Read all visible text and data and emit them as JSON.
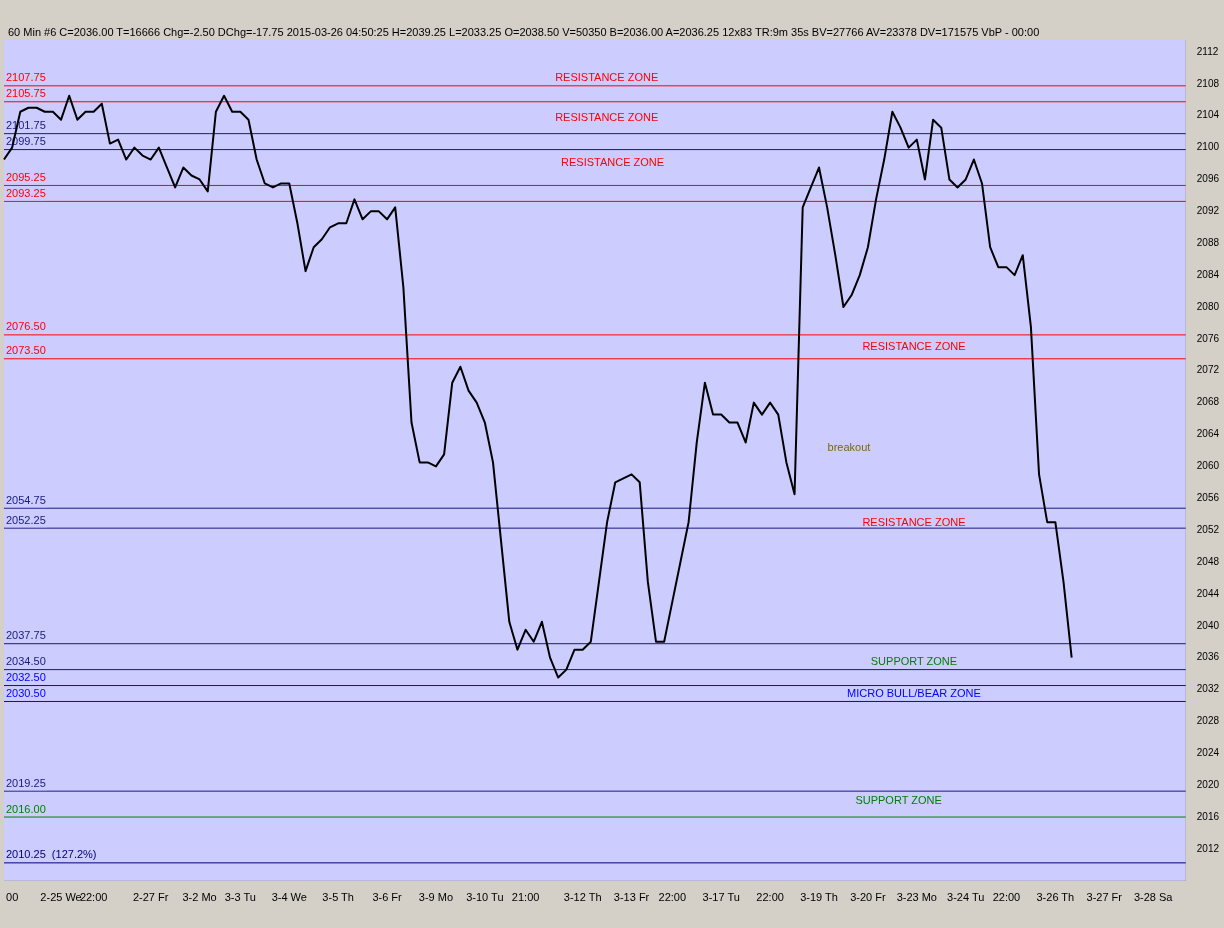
{
  "chart_data": {
    "type": "line",
    "title": "60 Min  #6  C=2036.00  T=16666  Chg=-2.50  DChg=-17.75  2015-03-26 04:50:25  H=2039.25  L=2033.25  O=2038.50  V=50350  B=2036.00  A=2036.25  12x83  TR:9m 35s  BV=27766  AV=23378  DV=171575  VbP - 00:00",
    "categories": [
      null,
      "00",
      null,
      null,
      null,
      null,
      null,
      "2-25 We",
      null,
      null,
      null,
      "22:00",
      null,
      null,
      null,
      null,
      null,
      null,
      "2-27 Fr",
      null,
      null,
      null,
      null,
      null,
      "3-2 Mo",
      null,
      null,
      null,
      null,
      "3-3 Tu",
      null,
      null,
      null,
      null,
      null,
      "3-4 We",
      null,
      null,
      null,
      null,
      null,
      "3-5 Th",
      null,
      null,
      null,
      null,
      null,
      "3-6 Fr",
      null,
      null,
      null,
      null,
      null,
      "3-9 Mo",
      null,
      null,
      null,
      null,
      null,
      "3-10 Tu",
      null,
      null,
      null,
      null,
      "21:00",
      null,
      null,
      null,
      null,
      null,
      null,
      "3-12 Th",
      null,
      null,
      null,
      null,
      null,
      "3-13 Fr",
      null,
      null,
      null,
      null,
      "22:00",
      null,
      null,
      null,
      null,
      null,
      "3-17 Tu",
      null,
      null,
      null,
      null,
      null,
      "22:00",
      null,
      null,
      null,
      null,
      null,
      "3-19 Th",
      null,
      null,
      null,
      null,
      null,
      "3-20 Fr",
      null,
      null,
      null,
      null,
      null,
      "3-23 Mo",
      null,
      null,
      null,
      null,
      null,
      "3-24 Tu",
      null,
      null,
      null,
      null,
      "22:00",
      null,
      null,
      null,
      null,
      null,
      "3-26 Th",
      null,
      null,
      null,
      null,
      null,
      "3-27 Fr",
      null,
      null,
      null,
      null,
      null,
      "3-28 Sa",
      null,
      null,
      null,
      null
    ],
    "series": [
      {
        "color": "#000000",
        "values": [
          2098.5,
          2100,
          2104.5,
          2105,
          2105,
          2104.5,
          2104.5,
          2103.5,
          2106.5,
          2103.5,
          2104.5,
          2104.5,
          2105.5,
          2100.5,
          2101,
          2098.5,
          2100,
          2099,
          2098.5,
          2100,
          2097.5,
          2095,
          2097.5,
          2096.5,
          2096,
          2094.5,
          2104.5,
          2106.5,
          2104.5,
          2104.5,
          2103.5,
          2098.5,
          2095.5,
          2095,
          2095.5,
          2095.5,
          2090.5,
          2084.5,
          2087.5,
          2088.5,
          2090,
          2090.5,
          2090.5,
          2093.5,
          2091,
          2092,
          2092,
          2091,
          2092.5,
          2082.5,
          2065.5,
          2060.5,
          2060.5,
          2060,
          2061.5,
          2070.5,
          2072.5,
          2069.5,
          2068,
          2065.5,
          2060.5,
          2050.5,
          2040.5,
          2037,
          2039.5,
          2038,
          2040.5,
          2036,
          2033.5,
          2034.5,
          2037,
          2037,
          2038,
          2045.5,
          2053,
          2058,
          2058.5,
          2059,
          2058,
          2045.5,
          2038,
          2038,
          2043,
          2048,
          2053,
          2063,
          2070.5,
          2066.5,
          2066.5,
          2065.5,
          2065.5,
          2063,
          2068,
          2066.5,
          2068,
          2066.5,
          2060.5,
          2056.5,
          2092.5,
          2095,
          2097.5,
          2092.5,
          2086.5,
          2080,
          2081.5,
          2084,
          2087.5,
          2093.5,
          2098.5,
          2104.5,
          2102.5,
          2100,
          2101,
          2096,
          2103.5,
          2102.5,
          2096,
          2095,
          2096,
          2098.5,
          2095.5,
          2087.5,
          2085,
          2085,
          2084,
          2086.5,
          2077.5,
          2059,
          2053,
          2053,
          2045.5,
          2036,
          null,
          null,
          null,
          null,
          null,
          null,
          null,
          null,
          null,
          null,
          null,
          null,
          null,
          null
        ]
      }
    ],
    "ylim": [
      2008,
      2113.5
    ],
    "yticks": [
      2012,
      2016,
      2020,
      2024,
      2028,
      2032,
      2036,
      2040,
      2044,
      2048,
      2052,
      2056,
      2060,
      2064,
      2068,
      2072,
      2076,
      2080,
      2084,
      2088,
      2092,
      2096,
      2100,
      2104,
      2108,
      2112
    ],
    "grid": false,
    "marker": "none",
    "line_style": "solid",
    "ref_lines": [
      {
        "axis": "y",
        "value": 2107.75,
        "label": "2107.75",
        "color": "#ff0000"
      },
      {
        "axis": "y",
        "value": 2105.75,
        "label": "2105.75",
        "color": "#ff0000"
      },
      {
        "axis": "y",
        "value": 2101.75,
        "label": "2101.75",
        "color": "#1a1a80"
      },
      {
        "axis": "y",
        "value": 2099.75,
        "label": "2099.75",
        "color": "#1a1a80"
      },
      {
        "axis": "y",
        "value": 2095.25,
        "label": "2095.25",
        "color": "#ff0000"
      },
      {
        "axis": "y",
        "value": 2093.25,
        "label": "2093.25",
        "color": "#ff0000"
      },
      {
        "axis": "y",
        "value": 2076.5,
        "label": "2076.50",
        "color": "#ff0000"
      },
      {
        "axis": "y",
        "value": 2073.5,
        "label": "2073.50",
        "color": "#ff0000"
      },
      {
        "axis": "y",
        "value": 2054.75,
        "label": "2054.75",
        "color": "#1a1a80"
      },
      {
        "axis": "y",
        "value": 2052.25,
        "label": "2052.25",
        "color": "#1a1a80"
      },
      {
        "axis": "y",
        "value": 2037.75,
        "label": "2037.75",
        "color": "#1a1a80"
      },
      {
        "axis": "y",
        "value": 2034.5,
        "label": "2034.50",
        "color": "#1a1a80"
      },
      {
        "axis": "y",
        "value": 2032.5,
        "label": "2032.50",
        "color": "#0000ff"
      },
      {
        "axis": "y",
        "value": 2030.5,
        "label": "2030.50",
        "color": "#0000ff"
      },
      {
        "axis": "y",
        "value": 2019.25,
        "label": "2019.25",
        "color": "#1a1a80"
      },
      {
        "axis": "y",
        "value": 2016,
        "label": "2016.00",
        "color": "#008000"
      },
      {
        "axis": "y",
        "value": 2010.25,
        "label": "2010.25  (127.2%)",
        "color": "#000080"
      }
    ],
    "annotations": [
      "RESISTANCE ZONE",
      "RESISTANCE ZONE",
      "RESISTANCE ZONE",
      "RESISTANCE ZONE",
      "RESISTANCE ZONE",
      "SUPPORT ZONE",
      "MICRO BULL/BEAR ZONE",
      "SUPPORT ZONE",
      "breakout"
    ]
  }
}
